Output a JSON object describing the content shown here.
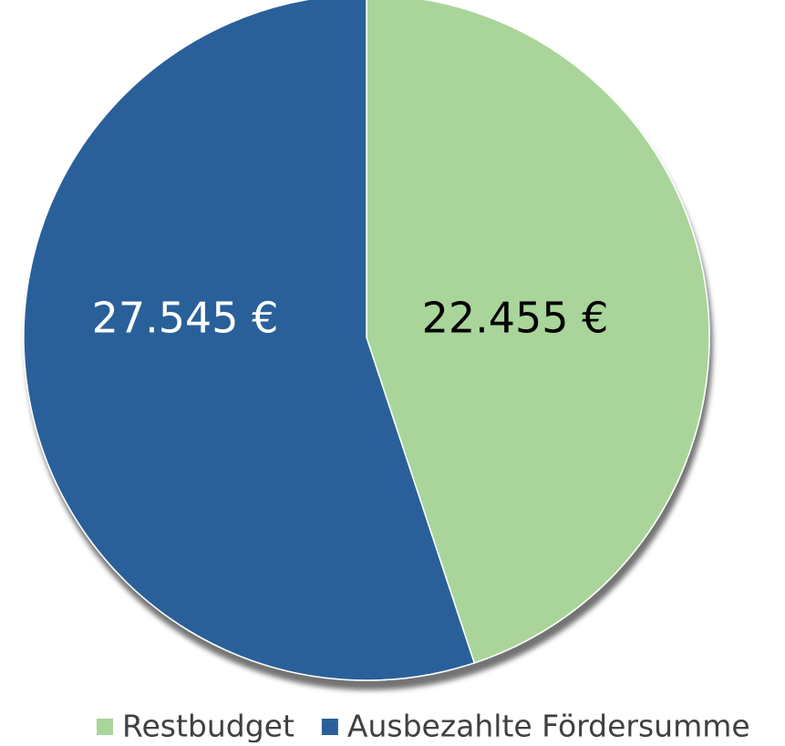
{
  "chart_data": {
    "type": "pie",
    "categories": [
      "Restbudget",
      "Ausbezahlte Fördersumme"
    ],
    "values": [
      22455,
      27545
    ],
    "value_labels": [
      "22.455 €",
      "27.545 €"
    ],
    "colors": [
      "#a9d59a",
      "#2a6099"
    ],
    "legend": "bottom"
  }
}
